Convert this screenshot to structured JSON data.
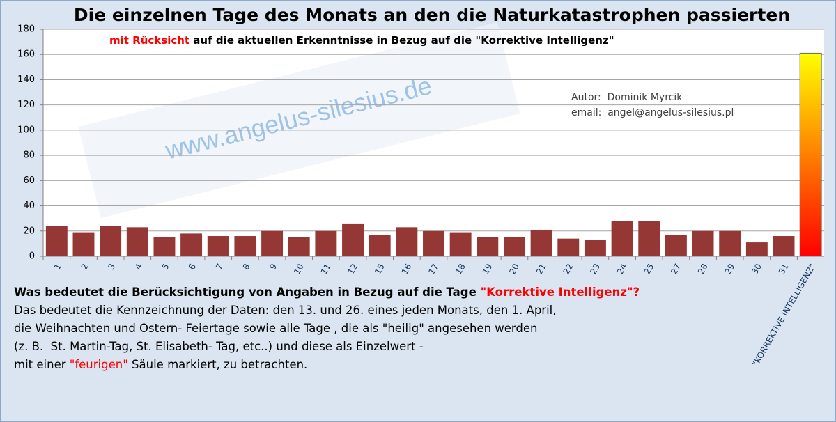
{
  "chart_data": {
    "type": "bar",
    "title": "Die einzelnen Tage des Monats an den die Naturkatastrophen passierten",
    "subtitle": [
      {
        "text": "mit Rücksicht",
        "color": "#ff0000"
      },
      {
        "text": " auf die aktuellen Erkenntnisse in Bezug auf die \"Korrektive Intelligenz\"",
        "color": "#000000"
      }
    ],
    "watermark": "www.angelus-silesius.de",
    "annotations": [
      "Autor:  Dominik Myrcik",
      "email:  angel@angelus-silesius.pl"
    ],
    "categories": [
      "1",
      "2",
      "3",
      "4",
      "5",
      "6",
      "7",
      "8",
      "9",
      "10",
      "11",
      "12",
      "15",
      "16",
      "17",
      "18",
      "19",
      "20",
      "21",
      "22",
      "23",
      "24",
      "25",
      "27",
      "28",
      "29",
      "30",
      "31",
      "\"KORREKTIVE INTELLIGENZ\""
    ],
    "values": [
      24,
      19,
      24,
      23,
      15,
      18,
      16,
      16,
      20,
      15,
      20,
      26,
      17,
      23,
      20,
      19,
      15,
      15,
      21,
      14,
      13,
      28,
      28,
      17,
      20,
      20,
      11,
      16,
      161
    ],
    "colors": [
      "#953735",
      "#953735",
      "#953735",
      "#953735",
      "#953735",
      "#953735",
      "#953735",
      "#953735",
      "#953735",
      "#953735",
      "#953735",
      "#953735",
      "#953735",
      "#953735",
      "#953735",
      "#953735",
      "#953735",
      "#953735",
      "#953735",
      "#953735",
      "#953735",
      "#953735",
      "#953735",
      "#953735",
      "#953735",
      "#953735",
      "#953735",
      "#953735",
      [
        "#ff0000",
        "#ffff00"
      ]
    ],
    "ylim": [
      0,
      180
    ],
    "yticks": [
      0,
      20,
      40,
      60,
      80,
      100,
      120,
      140,
      160,
      180
    ],
    "grid": true
  },
  "explanation": [
    [
      {
        "text": "Was bedeutet die Berücksichtigung von Angaben in Bezug auf die Tage ",
        "color": "#000000",
        "bold": true
      },
      {
        "text": "\"Korrektive Intelligenz\"?",
        "color": "#ff0000",
        "bold": true
      }
    ],
    [
      {
        "text": "Das bedeutet die Kennzeichnung der Daten: den 13. und 26. eines jeden Monats, den 1. April,",
        "color": "#000000"
      }
    ],
    [
      {
        "text": "die Weihnachten und Ostern- Feiertage sowie alle Tage , die als \"heilig\" angesehen werden",
        "color": "#000000"
      }
    ],
    [
      {
        "text": "(z. B.  St. Martin-Tag, St. Elisabeth- Tag, etc..) und diese als Einzelwert -",
        "color": "#000000"
      }
    ],
    [
      {
        "text": "mit einer ",
        "color": "#000000"
      },
      {
        "text": "\"feurigen\"",
        "color": "#ff0000"
      },
      {
        "text": " Säule markiert, zu betrachten.",
        "color": "#000000"
      }
    ]
  ]
}
